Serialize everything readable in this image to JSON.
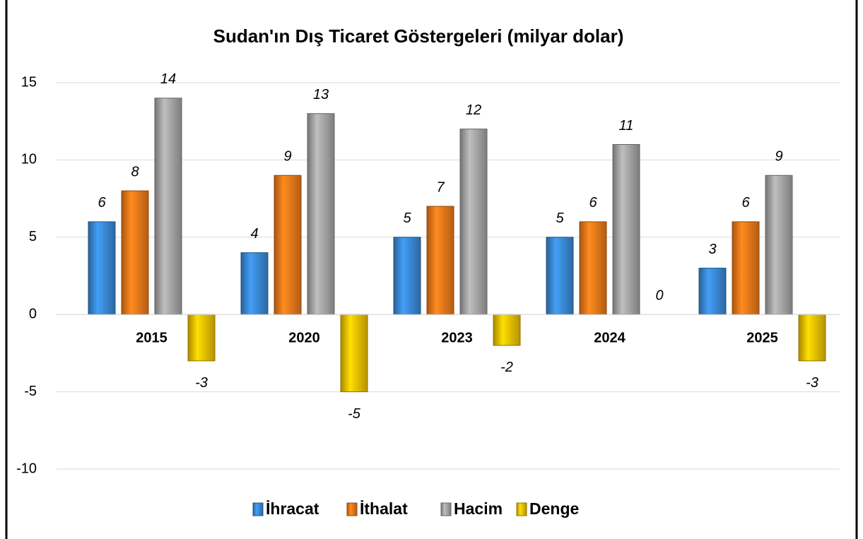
{
  "chart_data": {
    "type": "bar",
    "title": "Sudan'ın Dış Ticaret Göstergeleri (milyar dolar)",
    "categories": [
      "2015",
      "2020",
      "2023",
      "2024",
      "2025"
    ],
    "series": [
      {
        "name": "İhracat",
        "color": "#3a8ad8",
        "values": [
          6,
          4,
          5,
          5,
          3
        ]
      },
      {
        "name": "İthalat",
        "color": "#f07a1a",
        "values": [
          8,
          9,
          7,
          6,
          6
        ]
      },
      {
        "name": "Hacim",
        "color": "#a6a6a6",
        "values": [
          14,
          13,
          12,
          11,
          9
        ]
      },
      {
        "name": "Denge",
        "color": "#f2c200",
        "values": [
          -3,
          -5,
          -2,
          0,
          -3
        ]
      }
    ],
    "ylim": [
      -10,
      15
    ],
    "yticks": [
      -10,
      -5,
      0,
      5,
      10,
      15
    ],
    "grid": true,
    "legend": "bottom"
  }
}
